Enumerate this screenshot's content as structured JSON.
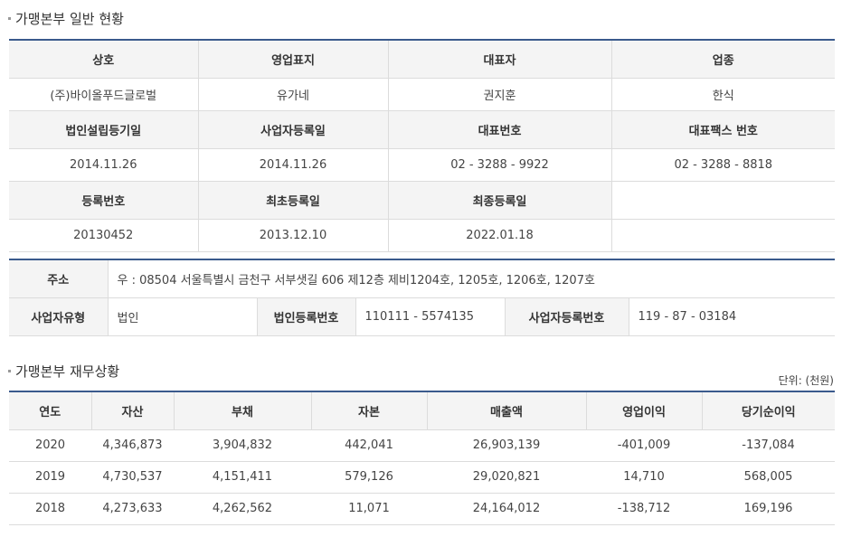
{
  "general": {
    "title": "가맹본부 일반 현황",
    "headers1": [
      "상호",
      "영업표지",
      "대표자",
      "업종"
    ],
    "values1": [
      "(주)바이올푸드글로벌",
      "유가네",
      "권지훈",
      "한식"
    ],
    "headers2": [
      "법인설립등기일",
      "사업자등록일",
      "대표번호",
      "대표팩스 번호"
    ],
    "values2": [
      "2014.11.26",
      "2014.11.26",
      "02 - 3288 - 9922",
      "02 - 3288 - 8818"
    ],
    "headers3": [
      "등록번호",
      "최초등록일",
      "최종등록일",
      ""
    ],
    "values3": [
      "20130452",
      "2013.12.10",
      "2022.01.18",
      ""
    ]
  },
  "address": {
    "label": "주소",
    "value": "우 : 08504 서울특별시 금천구 서부샛길 606 제12층 제비1204호, 1205호, 1206호, 1207호",
    "biz_type_label": "사업자유형",
    "biz_type_value": "법인",
    "corp_no_label": "법인등록번호",
    "corp_no_value": "110111 - 5574135",
    "biz_no_label": "사업자등록번호",
    "biz_no_value": "119 - 87 - 03184"
  },
  "finance": {
    "title": "가맹본부 재무상황",
    "unit": "단위: (천원)",
    "headers": [
      "연도",
      "자산",
      "부채",
      "자본",
      "매출액",
      "영업이익",
      "당기순이익"
    ],
    "rows": [
      [
        "2020",
        "4,346,873",
        "3,904,832",
        "442,041",
        "26,903,139",
        "-401,009",
        "-137,084"
      ],
      [
        "2019",
        "4,730,537",
        "4,151,411",
        "579,126",
        "29,020,821",
        "14,710",
        "568,005"
      ],
      [
        "2018",
        "4,273,633",
        "4,262,562",
        "11,071",
        "24,164,012",
        "-138,712",
        "169,196"
      ]
    ]
  }
}
